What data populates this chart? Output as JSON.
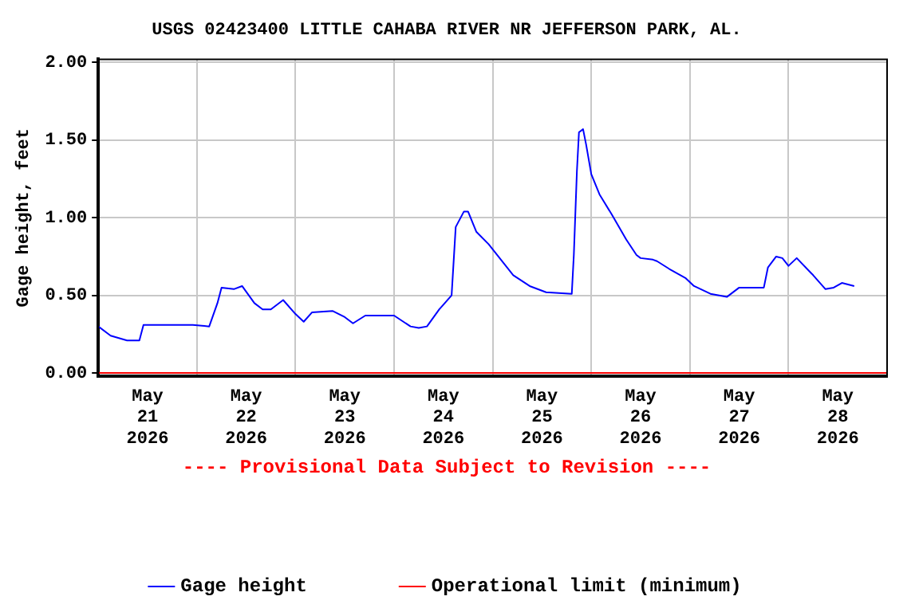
{
  "chart_data": {
    "type": "line",
    "title": "USGS 02423400 LITTLE CAHABA RIVER NR JEFFERSON PARK, AL.",
    "ylabel": "Gage height, feet",
    "annotations": [
      "---- Provisional Data Subject to Revision ----"
    ],
    "series": [
      {
        "name": "Gage height",
        "color": "#0000ff",
        "x": [
          "2026-05-21T00:00",
          "2026-05-21T03:00",
          "2026-05-21T07:00",
          "2026-05-21T10:00",
          "2026-05-21T11:00",
          "2026-05-21T23:00",
          "2026-05-22T03:00",
          "2026-05-22T05:00",
          "2026-05-22T06:00",
          "2026-05-22T09:00",
          "2026-05-22T11:00",
          "2026-05-22T14:00",
          "2026-05-22T16:00",
          "2026-05-22T18:00",
          "2026-05-22T21:00",
          "2026-05-23T00:00",
          "2026-05-23T02:00",
          "2026-05-23T04:00",
          "2026-05-23T09:00",
          "2026-05-23T12:00",
          "2026-05-23T14:00",
          "2026-05-23T17:00",
          "2026-05-23T20:00",
          "2026-05-24T00:00",
          "2026-05-24T04:00",
          "2026-05-24T06:00",
          "2026-05-24T08:00",
          "2026-05-24T11:00",
          "2026-05-24T12:00",
          "2026-05-24T14:00",
          "2026-05-24T15:00",
          "2026-05-24T17:00",
          "2026-05-24T18:00",
          "2026-05-24T20:00",
          "2026-05-24T23:00",
          "2026-05-25T02:00",
          "2026-05-25T05:00",
          "2026-05-25T09:00",
          "2026-05-25T13:00",
          "2026-05-25T19:15",
          "2026-05-25T19:45",
          "2026-05-25T20:30",
          "2026-05-25T21:00",
          "2026-05-25T22:00",
          "2026-05-25T22:45",
          "2026-05-26T00:00",
          "2026-05-26T02:00",
          "2026-05-26T05:00",
          "2026-05-26T08:30",
          "2026-05-26T11:00",
          "2026-05-26T12:00",
          "2026-05-26T15:00",
          "2026-05-26T16:00",
          "2026-05-26T19:00",
          "2026-05-26T23:00",
          "2026-05-27T01:00",
          "2026-05-27T05:00",
          "2026-05-27T09:00",
          "2026-05-27T12:00",
          "2026-05-27T18:00",
          "2026-05-27T19:00",
          "2026-05-27T21:00",
          "2026-05-27T22:30",
          "2026-05-28T00:00",
          "2026-05-28T02:00",
          "2026-05-28T06:00",
          "2026-05-28T09:00",
          "2026-05-28T11:00",
          "2026-05-28T13:00",
          "2026-05-28T16:00"
        ],
        "values": [
          0.3,
          0.24,
          0.21,
          0.21,
          0.31,
          0.31,
          0.3,
          0.45,
          0.55,
          0.54,
          0.56,
          0.45,
          0.41,
          0.41,
          0.47,
          0.38,
          0.33,
          0.39,
          0.4,
          0.36,
          0.32,
          0.37,
          0.37,
          0.37,
          0.3,
          0.29,
          0.3,
          0.41,
          0.44,
          0.5,
          0.94,
          1.04,
          1.04,
          0.91,
          0.83,
          0.73,
          0.63,
          0.56,
          0.52,
          0.51,
          0.76,
          1.3,
          1.55,
          1.57,
          1.47,
          1.28,
          1.15,
          1.02,
          0.86,
          0.76,
          0.74,
          0.73,
          0.72,
          0.67,
          0.61,
          0.56,
          0.51,
          0.49,
          0.55,
          0.55,
          0.68,
          0.75,
          0.74,
          0.69,
          0.74,
          0.63,
          0.54,
          0.55,
          0.58,
          0.56
        ]
      },
      {
        "name": "Operational limit (minimum)",
        "color": "#ff0000",
        "x": [
          "2026-05-21T00:00",
          "2026-05-29T00:00"
        ],
        "values": [
          0,
          0
        ]
      }
    ],
    "xlim": [
      "2026-05-21T00:00",
      "2026-05-29T00:00"
    ],
    "xticks": [
      {
        "value": "2026-05-21T00:00",
        "label": null
      },
      {
        "value": "2026-05-21T12:00",
        "label": "May 21 2026"
      },
      {
        "value": "2026-05-22T00:00",
        "label": null
      },
      {
        "value": "2026-05-22T12:00",
        "label": "May 22 2026"
      },
      {
        "value": "2026-05-23T00:00",
        "label": null
      },
      {
        "value": "2026-05-23T12:00",
        "label": "May 23 2026"
      },
      {
        "value": "2026-05-24T00:00",
        "label": null
      },
      {
        "value": "2026-05-24T12:00",
        "label": "May 24 2026"
      },
      {
        "value": "2026-05-25T00:00",
        "label": null
      },
      {
        "value": "2026-05-25T12:00",
        "label": "May 25 2026"
      },
      {
        "value": "2026-05-26T00:00",
        "label": null
      },
      {
        "value": "2026-05-26T12:00",
        "label": "May 26 2026"
      },
      {
        "value": "2026-05-27T00:00",
        "label": null
      },
      {
        "value": "2026-05-27T12:00",
        "label": "May 27 2026"
      },
      {
        "value": "2026-05-28T00:00",
        "label": null
      },
      {
        "value": "2026-05-28T12:00",
        "label": "May 28 2026"
      },
      {
        "value": "2026-05-29T00:00",
        "label": null
      }
    ],
    "ylim": [
      -0.02,
      2.02
    ],
    "yticks": [
      {
        "value": 0,
        "label": "0.00"
      },
      {
        "value": 0.5,
        "label": "0.50"
      },
      {
        "value": 1,
        "label": "1.00"
      },
      {
        "value": 1.5,
        "label": "1.50"
      },
      {
        "value": 2,
        "label": "2.00"
      }
    ],
    "grid": true,
    "legend": "bottom",
    "marker": "none",
    "line_style": "solid"
  }
}
